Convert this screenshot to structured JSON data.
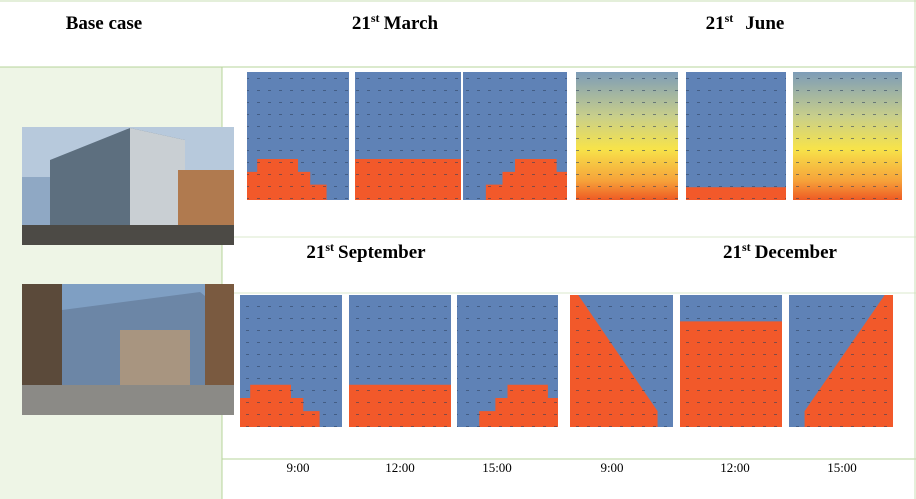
{
  "header": {
    "title": "Base case",
    "columns": [
      {
        "day": "21",
        "ordinal": "st",
        "month": "March"
      },
      {
        "day": "21",
        "ordinal": "st",
        "month": "June"
      }
    ]
  },
  "sections": [
    {
      "day": "21",
      "ordinal": "st",
      "month": "September"
    },
    {
      "day": "21",
      "ordinal": "st",
      "month": "December"
    }
  ],
  "times": [
    "9:00",
    "12:00",
    "15:00",
    "9:00",
    "12:00",
    "15:00"
  ]
}
